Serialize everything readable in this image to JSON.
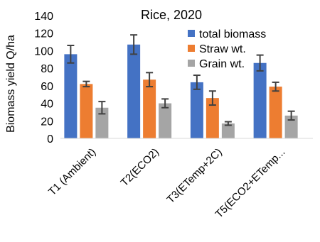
{
  "chart_data": {
    "type": "bar",
    "title": "Rice, 2020",
    "ylabel": "Biomass yield Q/ha",
    "xlabel": "",
    "categories": [
      "T1 (Ambient)",
      "T2(ECO2)",
      "T3(ETemp+2C)",
      "T5(ECO2+ETemp..."
    ],
    "ylim": [
      0,
      140
    ],
    "yticks": [
      0,
      20,
      40,
      60,
      80,
      100,
      120,
      140
    ],
    "grid": false,
    "legend": "top-right",
    "series": [
      {
        "name": "total biomass",
        "color": "#4472C4",
        "values": [
          96,
          107,
          64,
          86
        ],
        "errors": [
          10,
          11,
          8,
          9
        ]
      },
      {
        "name": "Straw wt.",
        "color": "#ED7D31",
        "values": [
          62,
          67,
          46,
          59
        ],
        "errors": [
          3,
          8,
          8,
          5
        ]
      },
      {
        "name": "Grain wt.",
        "color": "#A5A5A5",
        "values": [
          35,
          40,
          17,
          26
        ],
        "errors": [
          7,
          5,
          2,
          5
        ]
      }
    ]
  }
}
